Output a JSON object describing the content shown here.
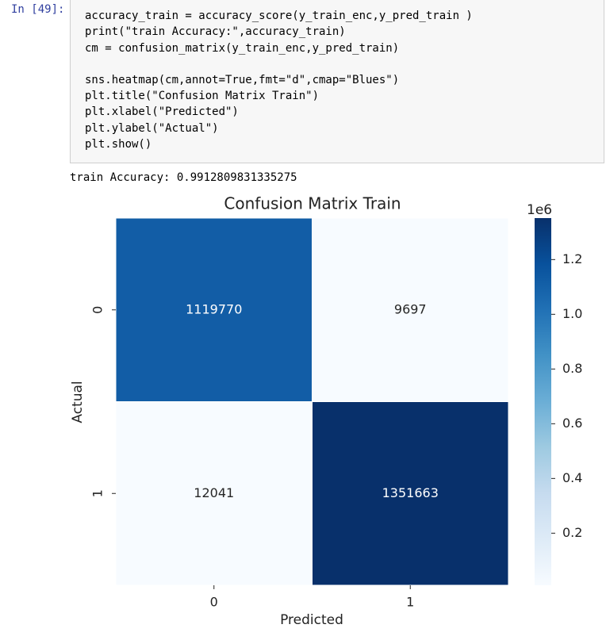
{
  "cell": {
    "prompt": "In [49]:",
    "code": [
      [
        "accuracy_train = accuracy_score(y_train_enc,y_pred_train )",
        "print(\"train Accuracy:\",accuracy_train)",
        "cm = confusion_matrix(y_train_enc,y_pred_train)"
      ],
      [
        "sns.heatmap(cm,annot=True,fmt=\"d\",cmap=\"Blues\")",
        "plt.title(\"Confusion Matrix Train\")",
        "plt.xlabel(\"Predicted\")",
        "plt.ylabel(\"Actual\")",
        "plt.show()"
      ]
    ]
  },
  "output": "train Accuracy: 0.9912809831335275",
  "chart_data": {
    "type": "heatmap",
    "title": "Confusion Matrix Train",
    "xlabel": "Predicted",
    "ylabel": "Actual",
    "x_categories": [
      "0",
      "1"
    ],
    "y_categories": [
      "0",
      "1"
    ],
    "values": [
      [
        1119770,
        9697
      ],
      [
        12041,
        1351663
      ]
    ],
    "cmap": "Blues",
    "clim": [
      9697,
      1351663
    ],
    "offset_label": "1e6",
    "cticks": [
      {
        "value": 200000,
        "label": "0.2"
      },
      {
        "value": 400000,
        "label": "0.4"
      },
      {
        "value": 600000,
        "label": "0.6"
      },
      {
        "value": 800000,
        "label": "0.8"
      },
      {
        "value": 1000000,
        "label": "1.0"
      },
      {
        "value": 1200000,
        "label": "1.2"
      }
    ]
  }
}
